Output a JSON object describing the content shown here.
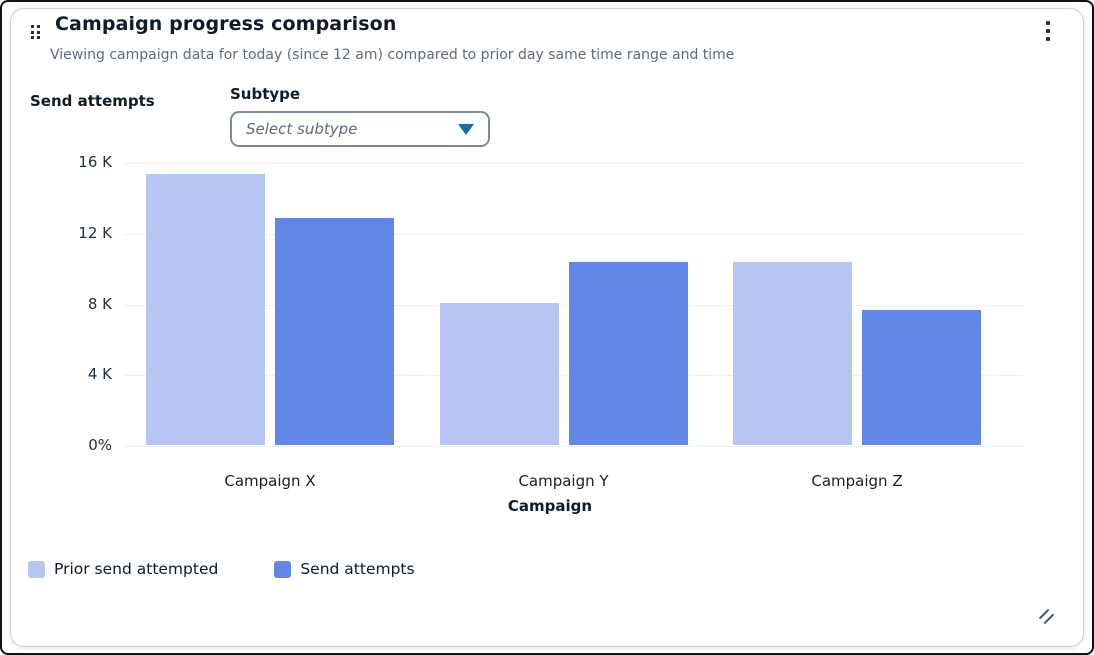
{
  "card": {
    "title": "Campaign progress comparison",
    "subtitle": "Viewing campaign data for today (since 12 am) compared to prior day same time range and time"
  },
  "controls": {
    "subtype_label": "Subtype",
    "subtype_placeholder": "Select subtype"
  },
  "chart_data": {
    "type": "bar",
    "title": "Campaign progress comparison",
    "xlabel": "Campaign",
    "ylabel": "Send attempts",
    "categories": [
      "Campaign X",
      "Campaign Y",
      "Campaign Z"
    ],
    "series": [
      {
        "name": "Prior send attempted",
        "color": "#b6c5f1",
        "values": [
          15400,
          8100,
          10400
        ]
      },
      {
        "name": "Send attempts",
        "color": "#6287e6",
        "values": [
          12900,
          10400,
          7700
        ]
      }
    ],
    "ylim": [
      0,
      16000
    ],
    "yticks": [
      {
        "value": 16000,
        "label": "16 K"
      },
      {
        "value": 12000,
        "label": "12 K"
      },
      {
        "value": 8000,
        "label": "8 K"
      },
      {
        "value": 4000,
        "label": "4 K"
      },
      {
        "value": 0,
        "label": "0%"
      }
    ],
    "grid": true,
    "legend_position": "bottom-left"
  },
  "colors": {
    "grid_line": "#edf0f2",
    "dropdown_arrow": "#13719c",
    "text_dark": "#0d1b2a",
    "text_muted": "#5f6b7a"
  }
}
